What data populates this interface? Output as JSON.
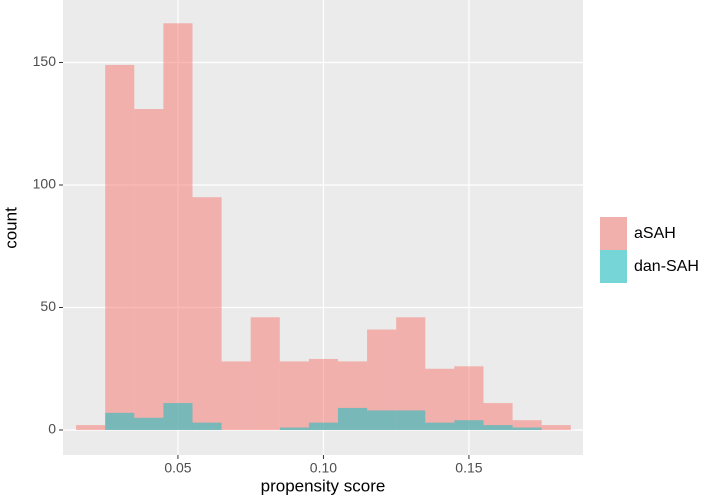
{
  "chart_data": {
    "type": "histogram",
    "x_label": "propensity score",
    "y_label": "count",
    "bins": [
      0.015,
      0.025,
      0.035,
      0.045,
      0.055,
      0.065,
      0.075,
      0.085,
      0.095,
      0.105,
      0.115,
      0.125,
      0.135,
      0.145,
      0.155,
      0.165,
      0.175,
      0.185
    ],
    "series": [
      {
        "name": "aSAH",
        "color": "#F8766D",
        "values": [
          2,
          149,
          131,
          166,
          95,
          28,
          46,
          28,
          29,
          28,
          41,
          46,
          25,
          26,
          11,
          4,
          2
        ]
      },
      {
        "name": "dan-SAH",
        "color": "#00BFC4",
        "values": [
          0,
          7,
          5,
          11,
          3,
          0,
          0,
          1,
          3,
          9,
          8,
          8,
          3,
          4,
          2,
          1,
          0
        ]
      }
    ],
    "opacity": 0.5,
    "xlim": [
      0.0105,
      0.1892
    ],
    "ylim": [
      -10.2,
      175.5
    ],
    "xticks": [
      0.05,
      {
        "value": 0.1,
        "label": "0.10"
      },
      0.15
    ],
    "yticks": [
      0,
      50,
      100,
      150
    ],
    "grid": true,
    "legend_position": "right"
  }
}
